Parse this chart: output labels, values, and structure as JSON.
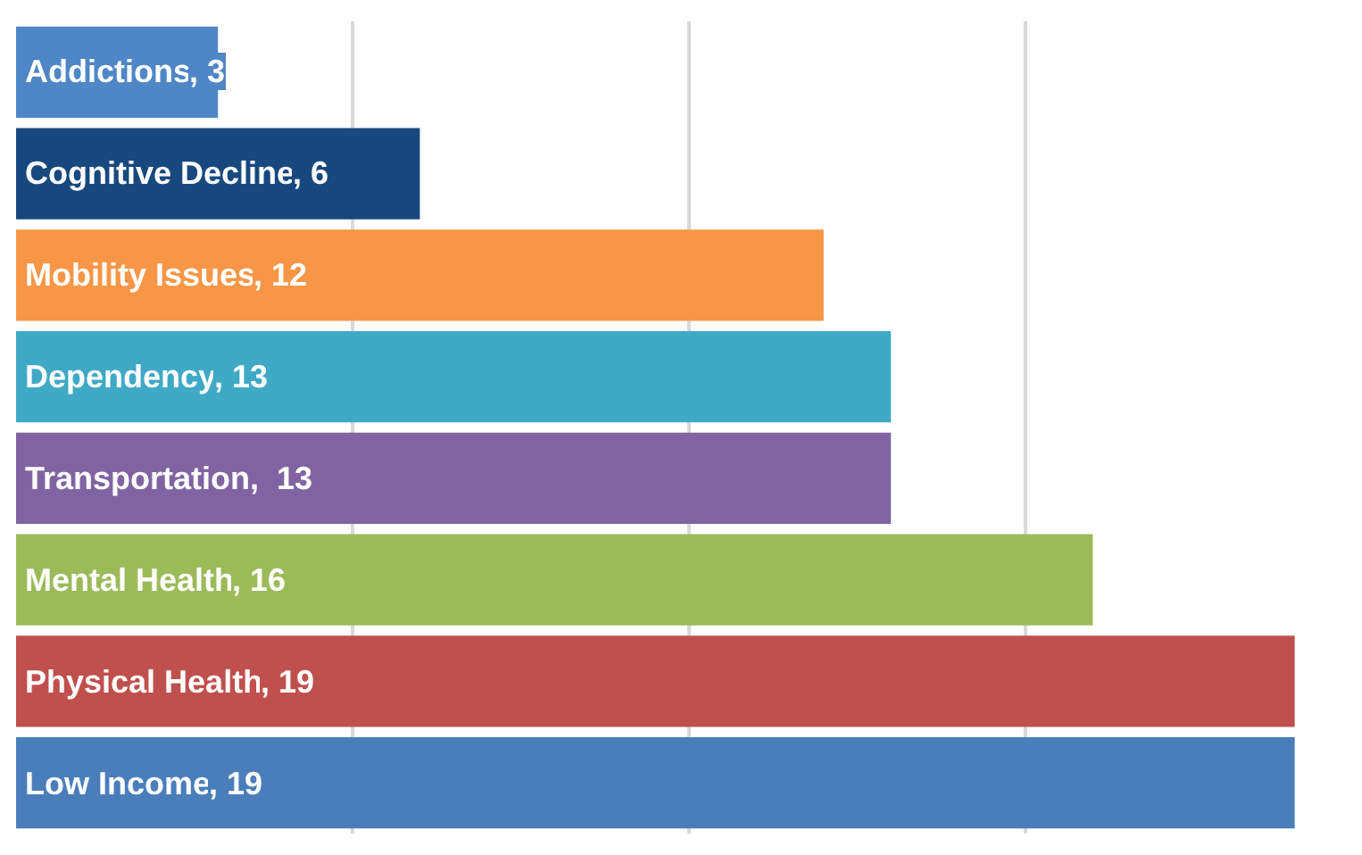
{
  "chart_data": {
    "type": "bar",
    "orientation": "horizontal",
    "categories": [
      "Addictions",
      "Cognitive Decline",
      "Mobility Issues",
      "Dependency",
      "Transportation",
      "Mental Health",
      "Physical Health",
      "Low Income"
    ],
    "values": [
      3,
      6,
      12,
      13,
      13,
      16,
      19,
      19
    ],
    "colors": [
      "#4f86c6",
      "#17497f",
      "#f79646",
      "#3fa9c6",
      "#8064a2",
      "#9bbb59",
      "#c0504d",
      "#4a7ebb"
    ],
    "value_labels": [
      ", 3",
      ", 6",
      ", 12",
      ", 13",
      ",  13",
      ", 16",
      ", 19",
      ", 19"
    ],
    "grid": "x",
    "tick_labels": false
  }
}
